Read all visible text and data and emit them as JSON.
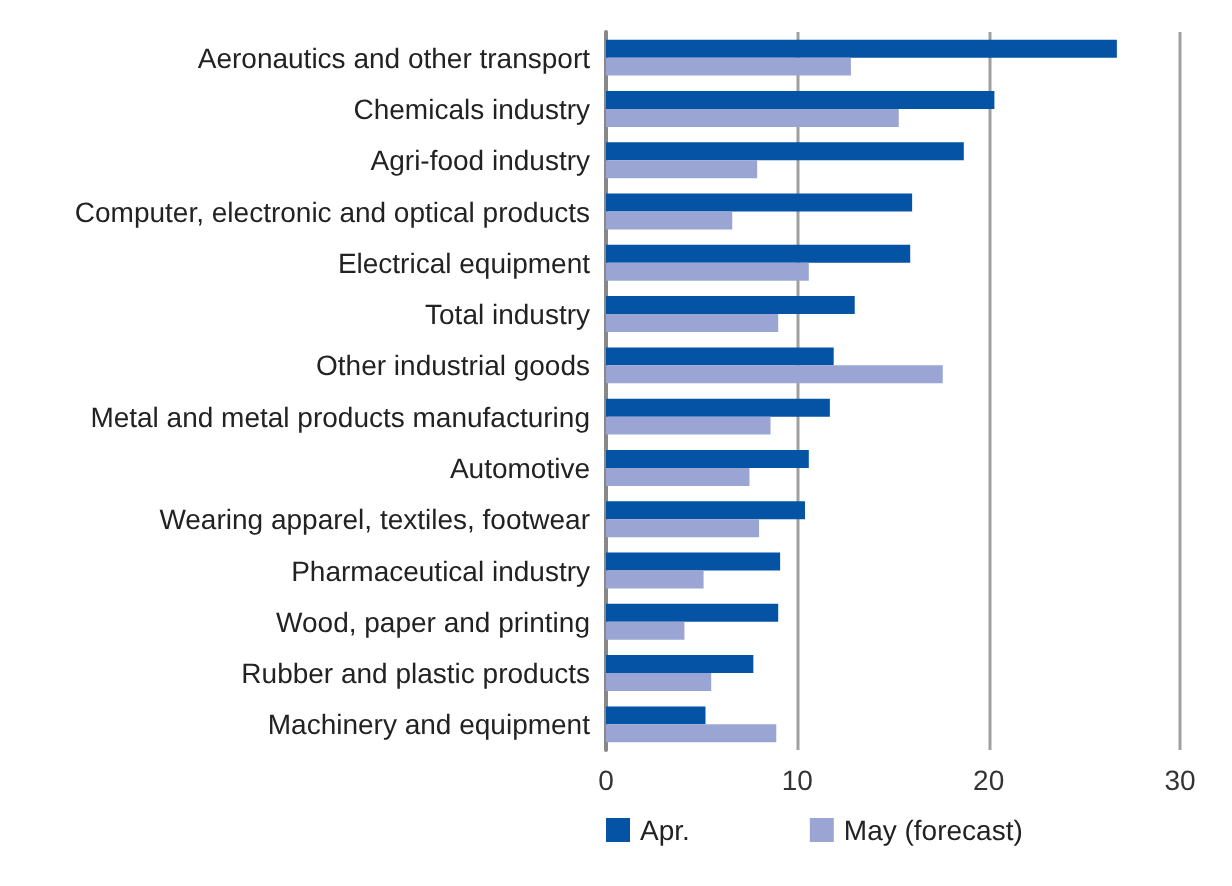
{
  "chart_data": {
    "type": "bar",
    "orientation": "horizontal",
    "categories": [
      "Aeronautics and other transport",
      "Chemicals industry",
      "Agri-food industry",
      "Computer, electronic and optical products",
      "Electrical equipment",
      "Total industry",
      "Other industrial goods",
      "Metal and metal products manufacturing",
      "Automotive",
      "Wearing apparel, textiles, footwear",
      "Pharmaceutical industry",
      "Wood, paper and printing",
      "Rubber and plastic products",
      "Machinery and equipment"
    ],
    "series": [
      {
        "name": "Apr.",
        "color": "#0553a5",
        "values": [
          26.7,
          20.3,
          18.7,
          16.0,
          15.9,
          13.0,
          11.9,
          11.7,
          10.6,
          10.4,
          9.1,
          9.0,
          7.7,
          5.2
        ]
      },
      {
        "name": "May (forecast)",
        "color": "#9aa5d3",
        "values": [
          12.8,
          15.3,
          7.9,
          6.6,
          10.6,
          9.0,
          17.6,
          8.6,
          7.5,
          8.0,
          5.1,
          4.1,
          5.5,
          8.9
        ]
      }
    ],
    "xlim": [
      0,
      30
    ],
    "xticks": [
      0,
      10,
      20,
      30
    ],
    "grid": "x",
    "legend": "bottom"
  }
}
